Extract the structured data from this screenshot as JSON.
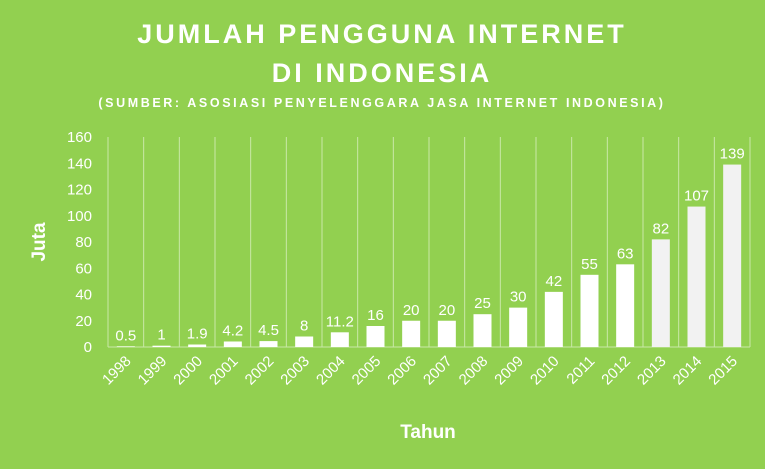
{
  "chart_data": {
    "type": "bar",
    "title_lines": [
      "JUMLAH PENGGUNA INTERNET",
      "DI INDONESIA"
    ],
    "subtitle": "(SUMBER: ASOSIASI PENYELENGGARA JASA INTERNET INDONESIA)",
    "xlabel": "Tahun",
    "ylabel": "Juta",
    "categories": [
      "1998",
      "1999",
      "2000",
      "2001",
      "2002",
      "2003",
      "2004",
      "2005",
      "2006",
      "2007",
      "2008",
      "2009",
      "2010",
      "2011",
      "2012",
      "2013",
      "2014",
      "2015"
    ],
    "values": [
      0.5,
      1,
      1.9,
      4.2,
      4.5,
      8,
      11.2,
      16,
      20,
      20,
      25,
      30,
      42,
      55,
      63,
      82,
      107,
      139
    ],
    "data_labels": [
      "0.5",
      "1",
      "1.9",
      "4.2",
      "4.5",
      "8",
      "11.2",
      "16",
      "20",
      "20",
      "25",
      "30",
      "42",
      "55",
      "63",
      "82",
      "107",
      "139"
    ],
    "y_ticks": [
      "0",
      "20",
      "40",
      "60",
      "80",
      "100",
      "120",
      "140",
      "160"
    ],
    "ylim": [
      0,
      160
    ],
    "grid": "vertical",
    "legend": "none",
    "colors": {
      "background": "#92d050",
      "bar_recent": "#f2f2f2",
      "bar": "#ffffff",
      "text": "#ffffff",
      "grid": "#c9e8a8"
    }
  }
}
